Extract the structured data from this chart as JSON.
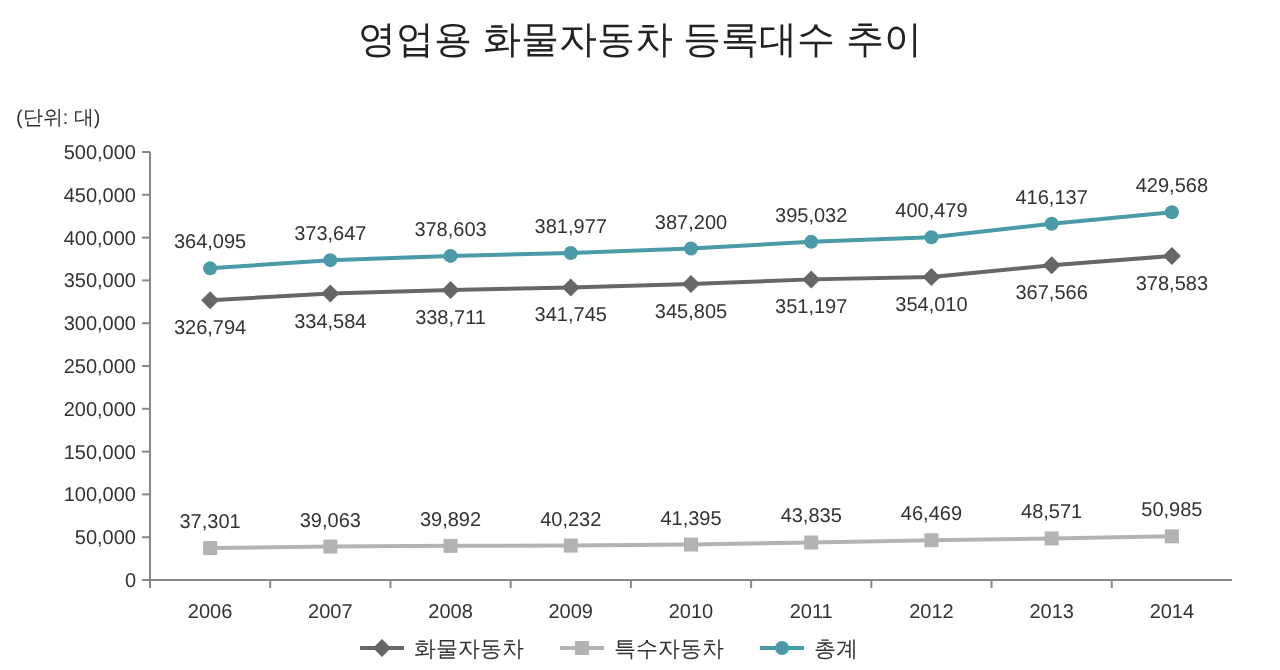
{
  "chart_data": {
    "type": "line",
    "title": "영업용 화물자동차 등록대수 추이",
    "ylabel": "(단위: 대)",
    "categories": [
      "2006",
      "2007",
      "2008",
      "2009",
      "2010",
      "2011",
      "2012",
      "2013",
      "2014"
    ],
    "series": [
      {
        "name": "화물자동차",
        "color": "#666666",
        "marker": "diamond",
        "values": [
          326794,
          334584,
          338711,
          341745,
          345805,
          351197,
          354010,
          367566,
          378583
        ],
        "value_labels": [
          "326,794",
          "334,584",
          "338,711",
          "341,745",
          "345,805",
          "351,197",
          "354,010",
          "367,566",
          "378,583"
        ]
      },
      {
        "name": "특수자동차",
        "color": "#b3b3b3",
        "marker": "square",
        "values": [
          37301,
          39063,
          39892,
          40232,
          41395,
          43835,
          46469,
          48571,
          50985
        ],
        "value_labels": [
          "37,301",
          "39,063",
          "39,892",
          "40,232",
          "41,395",
          "43,835",
          "46,469",
          "48,571",
          "50,985"
        ]
      },
      {
        "name": "총계",
        "color": "#4a9aa8",
        "marker": "circle",
        "values": [
          364095,
          373647,
          378603,
          381977,
          387200,
          395032,
          400479,
          416137,
          429568
        ],
        "value_labels": [
          "364,095",
          "373,647",
          "378,603",
          "381,977",
          "387,200",
          "395,032",
          "400,479",
          "416,137",
          "429,568"
        ]
      }
    ],
    "ylim": [
      0,
      500000
    ],
    "yticks": [
      0,
      {
        "value": 50000,
        "label": "50,000"
      },
      {
        "value": 100000,
        "label": "100,000"
      },
      {
        "value": 150000,
        "label": "150,000"
      },
      {
        "value": 200000,
        "label": "200,000"
      },
      {
        "value": 250000,
        "label": "250,000"
      },
      {
        "value": 300000,
        "label": "300,000"
      },
      {
        "value": 350000,
        "label": "350,000"
      },
      {
        "value": 400000,
        "label": "400,000"
      },
      {
        "value": 450000,
        "label": "450,000"
      },
      {
        "value": 500000,
        "label": "500,000"
      }
    ],
    "legend": "bottom"
  }
}
